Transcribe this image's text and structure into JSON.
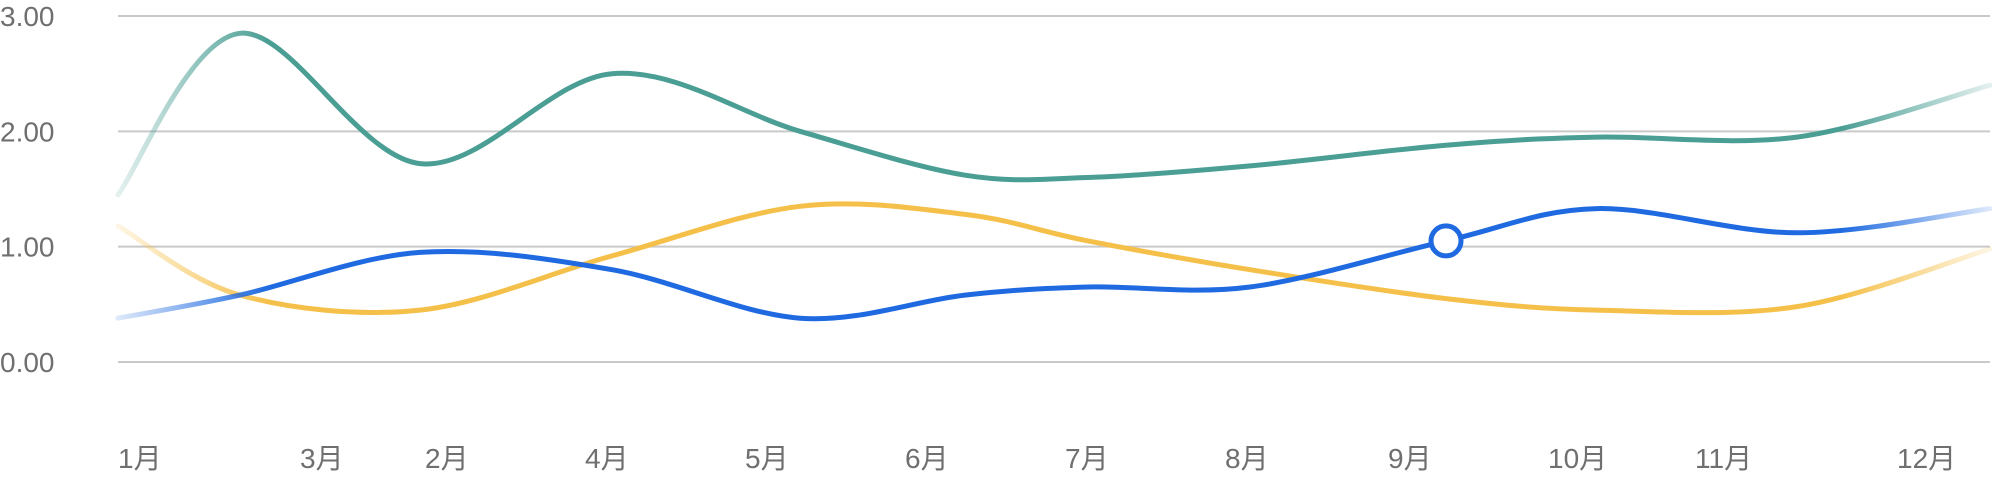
{
  "chart_data": {
    "type": "line",
    "title": "",
    "xlabel": "",
    "ylabel": "",
    "ylim": [
      0,
      3
    ],
    "yticks": [
      "0.00",
      "1.00",
      "2.00",
      "3.00"
    ],
    "grid": true,
    "legend": "none",
    "categories": [
      "1月",
      "3月",
      "2月",
      "4月",
      "5月",
      "6月",
      "7月",
      "8月",
      "9月",
      "10月",
      "11月",
      "12月"
    ],
    "series": [
      {
        "color": "#4a9e94",
        "values": [
          1.45,
          2.85,
          1.72,
          2.5,
          2.0,
          1.62,
          1.6,
          1.7,
          1.88,
          1.95,
          1.95,
          2.4
        ]
      },
      {
        "color": "#f5c04a",
        "values": [
          1.18,
          0.58,
          0.45,
          0.92,
          1.35,
          1.28,
          1.05,
          0.8,
          0.55,
          0.45,
          0.48,
          0.98
        ]
      },
      {
        "color": "#1f6ae0",
        "values": [
          0.38,
          0.58,
          0.95,
          0.8,
          0.38,
          0.58,
          0.65,
          0.65,
          1.05,
          1.33,
          1.12,
          1.33
        ],
        "highlight_index": 8
      }
    ]
  }
}
